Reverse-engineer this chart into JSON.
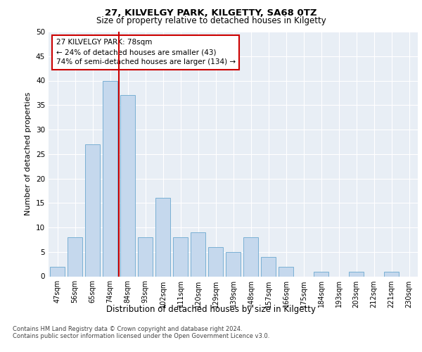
{
  "title1": "27, KILVELGY PARK, KILGETTY, SA68 0TZ",
  "title2": "Size of property relative to detached houses in Kilgetty",
  "xlabel": "Distribution of detached houses by size in Kilgetty",
  "ylabel": "Number of detached properties",
  "categories": [
    "47sqm",
    "56sqm",
    "65sqm",
    "74sqm",
    "84sqm",
    "93sqm",
    "102sqm",
    "111sqm",
    "120sqm",
    "129sqm",
    "139sqm",
    "148sqm",
    "157sqm",
    "166sqm",
    "175sqm",
    "184sqm",
    "193sqm",
    "203sqm",
    "212sqm",
    "221sqm",
    "230sqm"
  ],
  "values": [
    2,
    8,
    27,
    40,
    37,
    8,
    16,
    8,
    9,
    6,
    5,
    8,
    4,
    2,
    0,
    1,
    0,
    1,
    0,
    1,
    0
  ],
  "bar_color": "#c5d8ed",
  "bar_edge_color": "#7ab0d4",
  "bar_edge_width": 0.7,
  "redline_index": 3,
  "annotation_title": "27 KILVELGY PARK: 78sqm",
  "annotation_line1": "← 24% of detached houses are smaller (43)",
  "annotation_line2": "74% of semi-detached houses are larger (134) →",
  "annotation_box_color": "#ffffff",
  "annotation_box_edge": "#cc0000",
  "ylim": [
    0,
    50
  ],
  "yticks": [
    0,
    5,
    10,
    15,
    20,
    25,
    30,
    35,
    40,
    45,
    50
  ],
  "plot_bg_color": "#e8eef5",
  "grid_color": "#ffffff",
  "footer1": "Contains HM Land Registry data © Crown copyright and database right 2024.",
  "footer2": "Contains public sector information licensed under the Open Government Licence v3.0."
}
